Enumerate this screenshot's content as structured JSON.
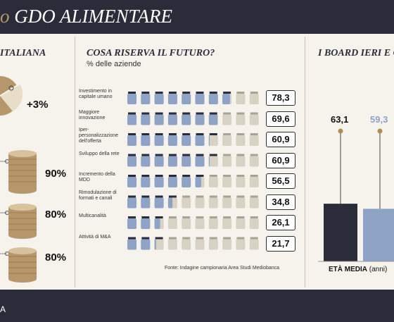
{
  "header": {
    "title_prefix": "o",
    "title": "GDO ALIMENTARE"
  },
  "left_panel": {
    "title": "ITALIANA",
    "pie_change": "+3%",
    "coin_stacks": [
      "90%",
      "80%",
      "80%"
    ]
  },
  "center_panel": {
    "title": "COSA RISERVA IL FUTURO?",
    "subtitle": "% delle aziende",
    "source": "Fonte: Indagine campionaria Area Studi Mediobanca"
  },
  "right_panel": {
    "title": "I BOARD IERI E O",
    "x_label_bold": "ETÀ MEDIA",
    "x_label_rest": " (anni)"
  },
  "footer": {
    "text": "A"
  },
  "colors": {
    "navy": "#2a2c3a",
    "blue": "#8ea3c6",
    "gold": "#b08d57",
    "jar_empty": "#d8d2c4"
  },
  "chart_data": [
    {
      "type": "bar",
      "title": "COSA RISERVA IL FUTURO?",
      "ylabel": "% delle aziende",
      "categories": [
        "Investimento in capitale umano",
        "Maggiore innovazione",
        "Iper-personalizzazione dell'offerta",
        "Sviluppo della rete",
        "Incremento della MDD",
        "Rimodulazione di formati e canali",
        "Multicanalità",
        "Attività di M&A"
      ],
      "values": [
        78.3,
        69.6,
        60.9,
        60.9,
        56.5,
        34.8,
        26.1,
        21.7
      ],
      "value_labels": [
        "78,3",
        "69,6",
        "60,9",
        "60,9",
        "56,5",
        "34,8",
        "26,1",
        "21,7"
      ]
    },
    {
      "type": "bar",
      "title": "I BOARD IERI E O",
      "xlabel": "ETÀ MEDIA (anni)",
      "values": [
        63.1,
        59.3
      ],
      "value_labels": [
        "63,1",
        "59,3"
      ],
      "colors": [
        "#2a2c3a",
        "#8ea3c6"
      ]
    }
  ]
}
